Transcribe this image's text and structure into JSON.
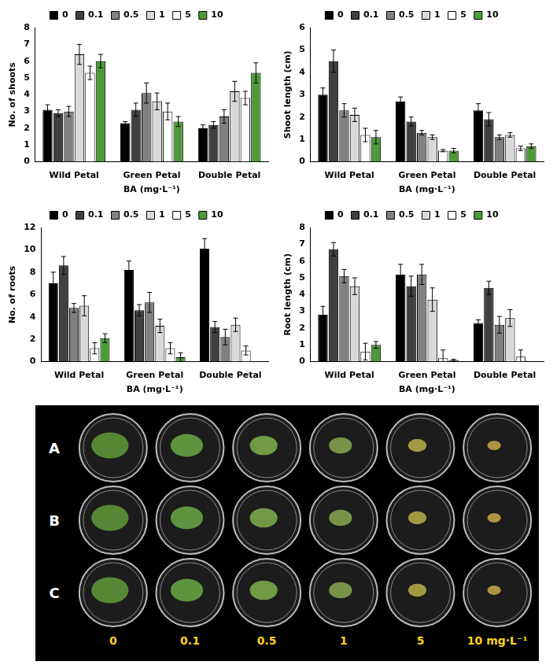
{
  "chart_data": [
    {
      "type": "bar",
      "x_label": "BA (mg·L⁻¹)",
      "y_label": "No. of shoots",
      "categories": [
        "Wild Petal",
        "Green Petal",
        "Double Petal"
      ],
      "ylim": [
        0,
        8
      ],
      "yticks": [
        0,
        1,
        2,
        3,
        4,
        5,
        6,
        7,
        8
      ],
      "grid": false,
      "legend": "top",
      "series": [
        {
          "name": "0",
          "color": "#000000",
          "values": [
            3.1,
            2.3,
            2.0
          ],
          "errors": [
            0.3,
            0.1,
            0.2
          ]
        },
        {
          "name": "0.1",
          "color": "#404040",
          "values": [
            2.9,
            3.1,
            2.2
          ],
          "errors": [
            0.2,
            0.4,
            0.2
          ]
        },
        {
          "name": "0.5",
          "color": "#808080",
          "values": [
            3.0,
            4.1,
            2.7
          ],
          "errors": [
            0.3,
            0.6,
            0.4
          ]
        },
        {
          "name": "1",
          "color": "#d9d9d9",
          "values": [
            6.4,
            3.6,
            4.2
          ],
          "errors": [
            0.6,
            0.5,
            0.6
          ]
        },
        {
          "name": "5",
          "color": "#ffffff",
          "values": [
            5.3,
            3.0,
            3.8
          ],
          "errors": [
            0.4,
            0.5,
            0.4
          ]
        },
        {
          "name": "10",
          "color": "#4e9a3a",
          "values": [
            6.0,
            2.4,
            5.3
          ],
          "errors": [
            0.4,
            0.3,
            0.6
          ]
        }
      ]
    },
    {
      "type": "bar",
      "x_label": "BA (mg·L⁻¹)",
      "y_label": "Shoot length (cm)",
      "categories": [
        "Wild Petal",
        "Green Petal",
        "Double Petal"
      ],
      "ylim": [
        0,
        6
      ],
      "yticks": [
        0,
        1,
        2,
        3,
        4,
        5,
        6
      ],
      "grid": false,
      "legend": "top",
      "series": [
        {
          "name": "0",
          "color": "#000000",
          "values": [
            3.0,
            2.7,
            2.3
          ],
          "errors": [
            0.3,
            0.2,
            0.3
          ]
        },
        {
          "name": "0.1",
          "color": "#404040",
          "values": [
            4.5,
            1.8,
            1.9
          ],
          "errors": [
            0.5,
            0.2,
            0.3
          ]
        },
        {
          "name": "0.5",
          "color": "#808080",
          "values": [
            2.3,
            1.3,
            1.1
          ],
          "errors": [
            0.3,
            0.1,
            0.1
          ]
        },
        {
          "name": "1",
          "color": "#d9d9d9",
          "values": [
            2.1,
            1.1,
            1.2
          ],
          "errors": [
            0.3,
            0.1,
            0.1
          ]
        },
        {
          "name": "5",
          "color": "#ffffff",
          "values": [
            1.2,
            0.5,
            0.6
          ],
          "errors": [
            0.3,
            0.05,
            0.1
          ]
        },
        {
          "name": "10",
          "color": "#4e9a3a",
          "values": [
            1.1,
            0.5,
            0.7
          ],
          "errors": [
            0.3,
            0.1,
            0.1
          ]
        }
      ]
    },
    {
      "type": "bar",
      "x_label": "BA (mg·L⁻¹)",
      "y_label": "No. of roots",
      "categories": [
        "Wild Petal",
        "Green Petal",
        "Double Petal"
      ],
      "ylim": [
        0,
        12
      ],
      "yticks": [
        0,
        2,
        4,
        6,
        8,
        10,
        12
      ],
      "grid": false,
      "legend": "top",
      "series": [
        {
          "name": "0",
          "color": "#000000",
          "values": [
            7.0,
            8.2,
            10.1
          ],
          "errors": [
            1.0,
            0.8,
            0.9
          ]
        },
        {
          "name": "0.1",
          "color": "#404040",
          "values": [
            8.6,
            4.6,
            3.1
          ],
          "errors": [
            0.8,
            0.5,
            0.5
          ]
        },
        {
          "name": "0.5",
          "color": "#808080",
          "values": [
            4.8,
            5.3,
            2.2
          ],
          "errors": [
            0.4,
            0.9,
            0.7
          ]
        },
        {
          "name": "1",
          "color": "#d9d9d9",
          "values": [
            5.0,
            3.2,
            3.3
          ],
          "errors": [
            0.9,
            0.6,
            0.6
          ]
        },
        {
          "name": "5",
          "color": "#ffffff",
          "values": [
            1.2,
            1.2,
            1.0
          ],
          "errors": [
            0.5,
            0.5,
            0.4
          ]
        },
        {
          "name": "10",
          "color": "#4e9a3a",
          "values": [
            2.1,
            0.4,
            0
          ],
          "errors": [
            0.4,
            0.4,
            null
          ]
        }
      ]
    },
    {
      "type": "bar",
      "x_label": "BA (mg·L⁻¹)",
      "y_label": "Root length (cm)",
      "categories": [
        "Wild Petal",
        "Green Petal",
        "Double Petal"
      ],
      "ylim": [
        0,
        8
      ],
      "yticks": [
        0,
        1,
        2,
        3,
        4,
        5,
        6,
        7,
        8
      ],
      "grid": false,
      "legend": "top",
      "series": [
        {
          "name": "0",
          "color": "#000000",
          "values": [
            2.8,
            5.2,
            2.3
          ],
          "errors": [
            0.5,
            0.6,
            0.2
          ]
        },
        {
          "name": "0.1",
          "color": "#404040",
          "values": [
            6.7,
            4.5,
            4.4
          ],
          "errors": [
            0.4,
            0.6,
            0.4
          ]
        },
        {
          "name": "0.5",
          "color": "#808080",
          "values": [
            5.1,
            5.2,
            2.2
          ],
          "errors": [
            0.4,
            0.6,
            0.5
          ]
        },
        {
          "name": "1",
          "color": "#d9d9d9",
          "values": [
            4.5,
            3.7,
            2.6
          ],
          "errors": [
            0.5,
            0.7,
            0.5
          ]
        },
        {
          "name": "5",
          "color": "#ffffff",
          "values": [
            0.6,
            0.2,
            0.3
          ],
          "errors": [
            0.5,
            0.5,
            0.4
          ]
        },
        {
          "name": "10",
          "color": "#4e9a3a",
          "values": [
            1.0,
            0.1,
            0
          ],
          "errors": [
            0.2,
            0.05,
            null
          ]
        }
      ]
    }
  ],
  "photo": {
    "rows": [
      "A",
      "B",
      "C"
    ],
    "columns": [
      "0",
      "0.1",
      "0.5",
      "1",
      "5",
      "10 mg·L⁻¹"
    ]
  }
}
